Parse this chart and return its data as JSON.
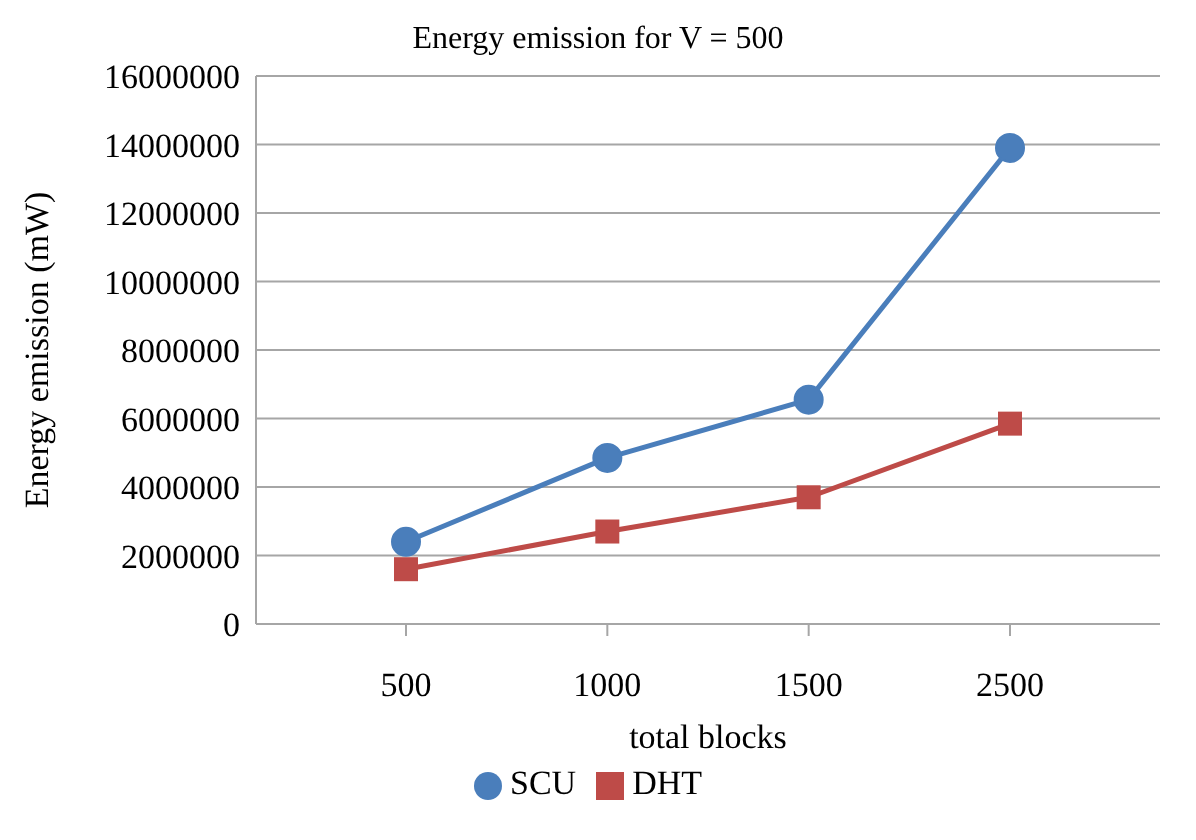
{
  "chart_data": {
    "type": "line",
    "title": "Energy emission for V = 500",
    "xlabel": "total blocks",
    "ylabel": "Energy emission (mW)",
    "categories": [
      "500",
      "1000",
      "1500",
      "2500"
    ],
    "series": [
      {
        "name": "SCU",
        "color": "#4a7ebb",
        "marker": "circle",
        "values": [
          2400000,
          4850000,
          6550000,
          13900000
        ]
      },
      {
        "name": "DHT",
        "color": "#be4b48",
        "marker": "square",
        "values": [
          1600000,
          2700000,
          3700000,
          5850000
        ]
      }
    ],
    "ylim": [
      0,
      16000000
    ],
    "yticks": [
      0,
      2000000,
      4000000,
      6000000,
      8000000,
      10000000,
      12000000,
      14000000,
      16000000
    ],
    "grid": "y",
    "legend": "bottom"
  }
}
